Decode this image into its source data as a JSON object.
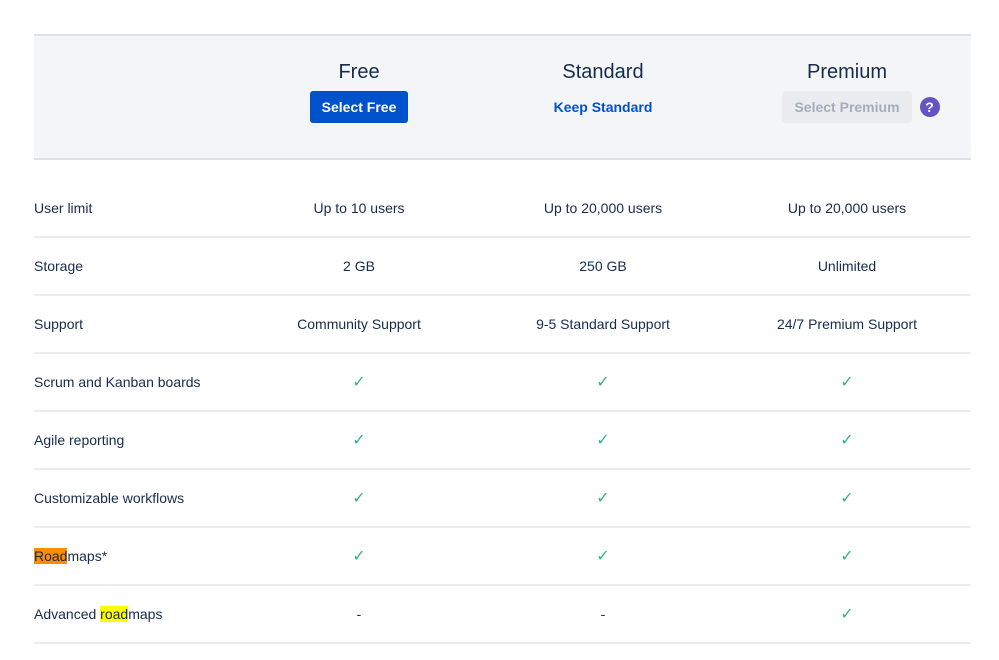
{
  "plans": [
    {
      "title": "Free",
      "action": "Select Free",
      "action_style": "primary"
    },
    {
      "title": "Standard",
      "action": "Keep Standard",
      "action_style": "link"
    },
    {
      "title": "Premium",
      "action": "Select Premium",
      "action_style": "disabled",
      "help_icon": "?"
    }
  ],
  "colors": {
    "primary": "#0052cc",
    "check": "#36b37e",
    "help": "#6554c0",
    "header_bg": "#f4f5f7",
    "highlight_orange": "#ff8b00",
    "highlight_yellow": "#ffff00"
  },
  "rows": [
    {
      "label": "User limit",
      "values": [
        "Up to 10 users",
        "Up to 20,000 users",
        "Up to 20,000 users"
      ]
    },
    {
      "label": "Storage",
      "values": [
        "2 GB",
        "250 GB",
        "Unlimited"
      ]
    },
    {
      "label": "Support",
      "values": [
        "Community Support",
        "9-5 Standard Support",
        "24/7 Premium Support"
      ]
    },
    {
      "label": "Scrum and Kanban boards",
      "values": [
        "✓",
        "✓",
        "✓"
      ]
    },
    {
      "label": "Agile reporting",
      "values": [
        "✓",
        "✓",
        "✓"
      ]
    },
    {
      "label": "Customizable workflows",
      "values": [
        "✓",
        "✓",
        "✓"
      ]
    },
    {
      "label_highlight": "Road",
      "label_rest": "maps*",
      "values": [
        "✓",
        "✓",
        "✓"
      ]
    },
    {
      "label_prefix": "Advanced ",
      "label_highlight": "road",
      "label_rest": "maps",
      "values": [
        "-",
        "-",
        "✓"
      ]
    }
  ]
}
